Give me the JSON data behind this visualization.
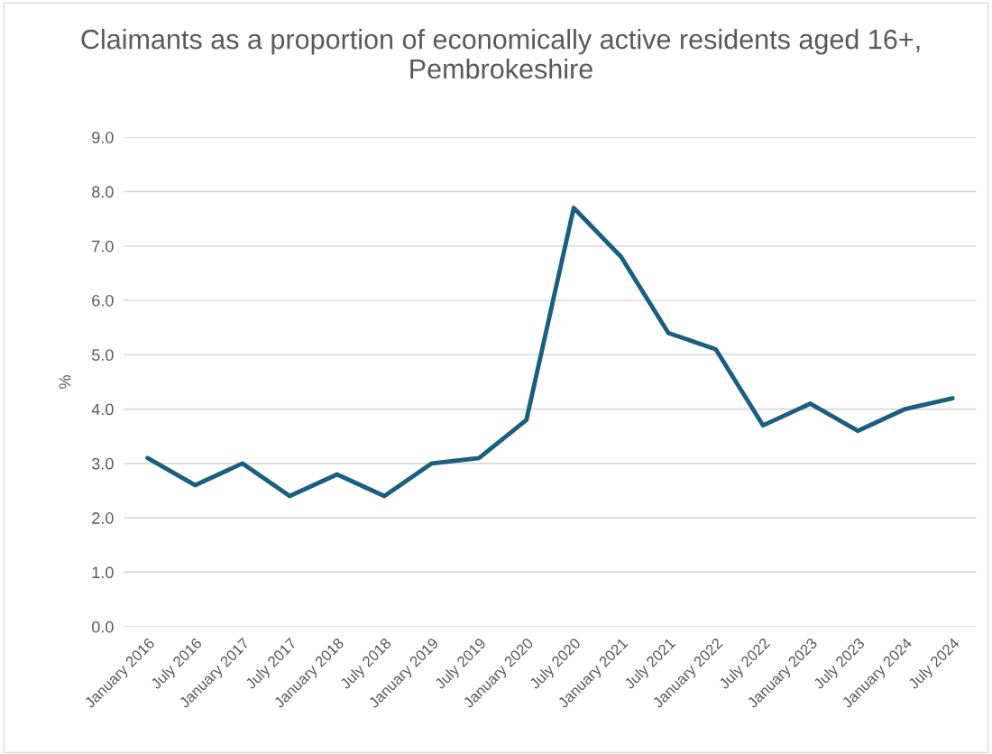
{
  "chart_data": {
    "type": "line",
    "title": "Claimants as a proportion of economically active residents aged 16+, Pembrokeshire",
    "ylabel": "%",
    "categories": [
      "January 2016",
      "July 2016",
      "January 2017",
      "July 2017",
      "January 2018",
      "July 2018",
      "January 2019",
      "July 2019",
      "January 2020",
      "July 2020",
      "January 2021",
      "July 2021",
      "January 2022",
      "July 2022",
      "January 2023",
      "July 2023",
      "January 2024",
      "July 2024"
    ],
    "series": [
      {
        "color": "#1b5f80",
        "values": [
          3.1,
          2.6,
          3.0,
          2.4,
          2.8,
          2.4,
          3.0,
          3.1,
          3.8,
          7.7,
          6.8,
          5.4,
          5.1,
          3.7,
          4.1,
          3.6,
          4.0,
          4.2
        ]
      }
    ],
    "ylim": [
      0,
      9
    ],
    "yticks": [
      {
        "value": 0,
        "label": "0.0"
      },
      {
        "value": 1,
        "label": "1.0"
      },
      {
        "value": 2,
        "label": "2.0"
      },
      {
        "value": 3,
        "label": "3.0"
      },
      {
        "value": 4,
        "label": "4.0"
      },
      {
        "value": 5,
        "label": "5.0"
      },
      {
        "value": 6,
        "label": "6.0"
      },
      {
        "value": 7,
        "label": "7.0"
      },
      {
        "value": 8,
        "label": "8.0"
      },
      {
        "value": 9,
        "label": "9.0"
      }
    ],
    "grid": "y",
    "marker": "none",
    "line_style": "solid"
  }
}
